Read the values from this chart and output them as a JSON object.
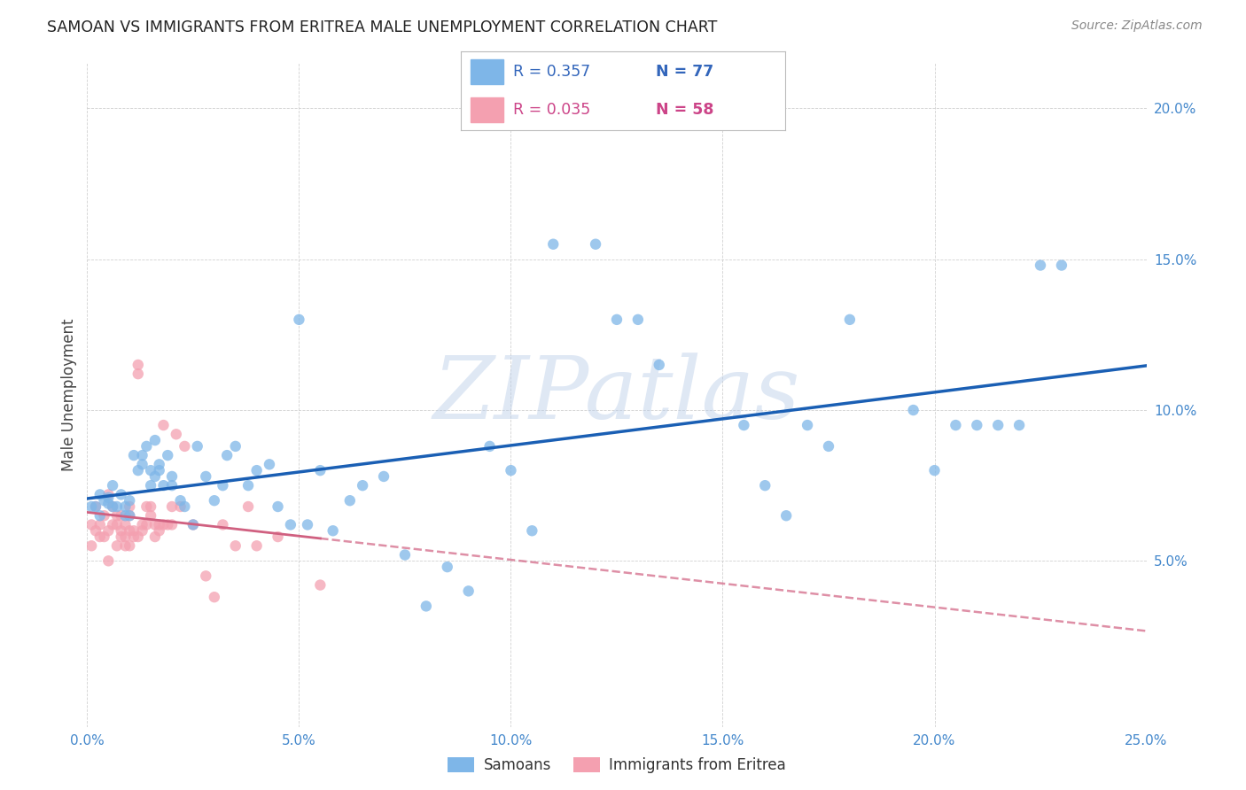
{
  "title": "SAMOAN VS IMMIGRANTS FROM ERITREA MALE UNEMPLOYMENT CORRELATION CHART",
  "source": "Source: ZipAtlas.com",
  "ylabel": "Male Unemployment",
  "xlim": [
    0.0,
    0.25
  ],
  "ylim": [
    -0.005,
    0.215
  ],
  "xticks": [
    0.0,
    0.05,
    0.1,
    0.15,
    0.2,
    0.25
  ],
  "xticklabels": [
    "0.0%",
    "5.0%",
    "10.0%",
    "15.0%",
    "20.0%",
    "25.0%"
  ],
  "yticks": [
    0.05,
    0.1,
    0.15,
    0.2
  ],
  "yticklabels": [
    "5.0%",
    "10.0%",
    "15.0%",
    "20.0%"
  ],
  "samoans_color": "#7eb6e8",
  "eritrea_color": "#f4a0b0",
  "trendline_samoans_color": "#1a5fb4",
  "trendline_eritrea_color": "#d06080",
  "legend_label_samoans": "Samoans",
  "legend_label_eritrea": "Immigrants from Eritrea",
  "R_samoans": "R = 0.357",
  "N_samoans": "N = 77",
  "R_eritrea": "R = 0.035",
  "N_eritrea": "N = 58",
  "watermark": "ZIPatlas",
  "background_color": "#ffffff",
  "grid_color": "#cccccc",
  "samoans_x": [
    0.001,
    0.002,
    0.003,
    0.003,
    0.004,
    0.005,
    0.005,
    0.006,
    0.006,
    0.007,
    0.008,
    0.009,
    0.009,
    0.01,
    0.01,
    0.011,
    0.012,
    0.013,
    0.013,
    0.014,
    0.015,
    0.015,
    0.016,
    0.016,
    0.017,
    0.017,
    0.018,
    0.019,
    0.02,
    0.02,
    0.022,
    0.023,
    0.025,
    0.026,
    0.028,
    0.03,
    0.032,
    0.033,
    0.035,
    0.038,
    0.04,
    0.043,
    0.045,
    0.048,
    0.05,
    0.052,
    0.055,
    0.058,
    0.062,
    0.065,
    0.07,
    0.075,
    0.08,
    0.085,
    0.09,
    0.095,
    0.1,
    0.105,
    0.11,
    0.12,
    0.125,
    0.13,
    0.135,
    0.155,
    0.16,
    0.165,
    0.17,
    0.175,
    0.18,
    0.195,
    0.2,
    0.205,
    0.21,
    0.215,
    0.22,
    0.225,
    0.23
  ],
  "samoans_y": [
    0.068,
    0.068,
    0.072,
    0.065,
    0.07,
    0.071,
    0.069,
    0.075,
    0.068,
    0.068,
    0.072,
    0.065,
    0.068,
    0.07,
    0.065,
    0.085,
    0.08,
    0.082,
    0.085,
    0.088,
    0.08,
    0.075,
    0.078,
    0.09,
    0.08,
    0.082,
    0.075,
    0.085,
    0.078,
    0.075,
    0.07,
    0.068,
    0.062,
    0.088,
    0.078,
    0.07,
    0.075,
    0.085,
    0.088,
    0.075,
    0.08,
    0.082,
    0.068,
    0.062,
    0.13,
    0.062,
    0.08,
    0.06,
    0.07,
    0.075,
    0.078,
    0.052,
    0.035,
    0.048,
    0.04,
    0.088,
    0.08,
    0.06,
    0.155,
    0.155,
    0.13,
    0.13,
    0.115,
    0.095,
    0.075,
    0.065,
    0.095,
    0.088,
    0.13,
    0.1,
    0.08,
    0.095,
    0.095,
    0.095,
    0.095,
    0.148,
    0.148
  ],
  "eritrea_x": [
    0.001,
    0.001,
    0.002,
    0.002,
    0.003,
    0.003,
    0.004,
    0.004,
    0.005,
    0.005,
    0.005,
    0.006,
    0.006,
    0.007,
    0.007,
    0.007,
    0.008,
    0.008,
    0.008,
    0.009,
    0.009,
    0.009,
    0.01,
    0.01,
    0.01,
    0.01,
    0.011,
    0.011,
    0.012,
    0.012,
    0.012,
    0.013,
    0.013,
    0.014,
    0.014,
    0.015,
    0.015,
    0.016,
    0.016,
    0.017,
    0.017,
    0.018,
    0.018,
    0.019,
    0.02,
    0.02,
    0.021,
    0.022,
    0.023,
    0.025,
    0.028,
    0.03,
    0.032,
    0.035,
    0.038,
    0.04,
    0.045,
    0.055
  ],
  "eritrea_y": [
    0.062,
    0.055,
    0.068,
    0.06,
    0.062,
    0.058,
    0.065,
    0.058,
    0.072,
    0.06,
    0.05,
    0.068,
    0.062,
    0.065,
    0.062,
    0.055,
    0.065,
    0.06,
    0.058,
    0.062,
    0.058,
    0.055,
    0.068,
    0.065,
    0.06,
    0.055,
    0.06,
    0.058,
    0.115,
    0.112,
    0.058,
    0.062,
    0.06,
    0.068,
    0.062,
    0.068,
    0.065,
    0.062,
    0.058,
    0.06,
    0.062,
    0.062,
    0.095,
    0.062,
    0.068,
    0.062,
    0.092,
    0.068,
    0.088,
    0.062,
    0.045,
    0.038,
    0.062,
    0.055,
    0.068,
    0.055,
    0.058,
    0.042
  ]
}
